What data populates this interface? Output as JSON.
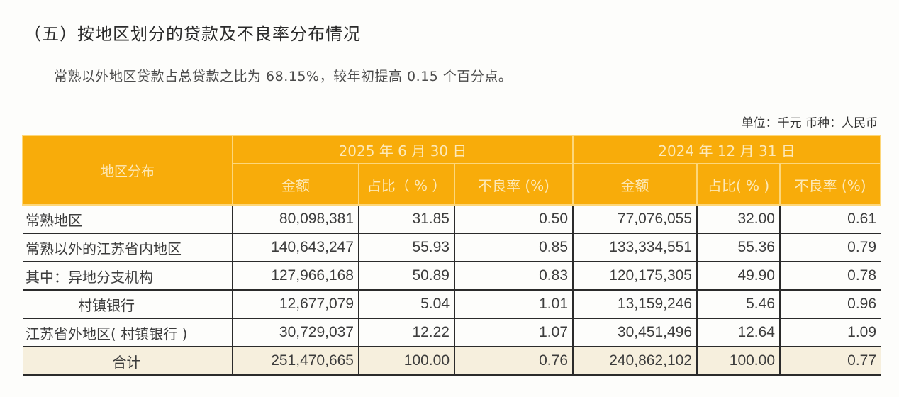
{
  "heading": "（五）按地区划分的贷款及不良率分布情况",
  "paragraph": "常熟以外地区贷款占总贷款之比为 68.15%，较年初提高 0.15 个百分点。",
  "unit_note": "单位：千元  币种：人民币",
  "table": {
    "region_header": "地区分布",
    "periods": [
      {
        "label": "2025 年 6 月 30 日",
        "cols": [
          "金额",
          "占比（ % ）",
          "不良率 (%)"
        ]
      },
      {
        "label": "2024 年 12 月 31 日",
        "cols": [
          "金额",
          "占比( % )",
          "不良率 (%)"
        ]
      }
    ],
    "rows": [
      {
        "region": "常熟地区",
        "cells": [
          "80,098,381",
          "31.85",
          "0.50",
          "77,076,055",
          "32.00",
          "0.61"
        ]
      },
      {
        "region": "常熟以外的江苏省内地区",
        "cells": [
          "140,643,247",
          "55.93",
          "0.85",
          "133,334,551",
          "55.36",
          "0.79"
        ]
      },
      {
        "region": "其中：异地分支机构",
        "cells": [
          "127,966,168",
          "50.89",
          "0.83",
          "120,175,305",
          "49.90",
          "0.78"
        ]
      },
      {
        "region": "村镇银行",
        "cells": [
          "12,677,079",
          "5.04",
          "1.01",
          "13,159,246",
          "5.46",
          "0.96"
        ]
      },
      {
        "region": "江苏省外地区( 村镇银行 )",
        "cells": [
          "30,729,037",
          "12.22",
          "1.07",
          "30,451,496",
          "12.64",
          "1.09"
        ]
      },
      {
        "region": "合计",
        "cells": [
          "251,470,665",
          "100.00",
          "0.76",
          "240,862,102",
          "100.00",
          "0.77"
        ]
      }
    ]
  },
  "colors": {
    "header_bg": "#f8ac0a",
    "header_text": "#fde9b8",
    "total_row_bg": "#f6efdd"
  }
}
